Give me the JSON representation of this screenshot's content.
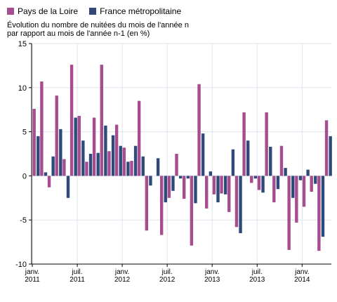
{
  "chart_data": {
    "type": "bar",
    "title": "",
    "ylabel_lines": [
      "Évolution du nombre de nuitées du mois de l'année n",
      "par rapport au mois de l'année n-1 (en %)"
    ],
    "xlabel": "",
    "ylim": [
      -10,
      15
    ],
    "yticks": [
      -10,
      -5,
      0,
      5,
      10,
      15
    ],
    "grid": true,
    "legend_position": "top-left",
    "x_ticks": [
      {
        "index": 0,
        "lines": [
          "janv.",
          "2011"
        ]
      },
      {
        "index": 6,
        "lines": [
          "juil.",
          "2011"
        ]
      },
      {
        "index": 12,
        "lines": [
          "janv.",
          "2012"
        ]
      },
      {
        "index": 18,
        "lines": [
          "juil.",
          "2012"
        ]
      },
      {
        "index": 24,
        "lines": [
          "janv.",
          "2013"
        ]
      },
      {
        "index": 30,
        "lines": [
          "juil.",
          "2013"
        ]
      },
      {
        "index": 36,
        "lines": [
          "janv.",
          "2014"
        ]
      }
    ],
    "categories": [
      "2011-01",
      "2011-02",
      "2011-03",
      "2011-04",
      "2011-05",
      "2011-06",
      "2011-07",
      "2011-08",
      "2011-09",
      "2011-10",
      "2011-11",
      "2011-12",
      "2012-01",
      "2012-02",
      "2012-03",
      "2012-04",
      "2012-05",
      "2012-06",
      "2012-07",
      "2012-08",
      "2012-09",
      "2012-10",
      "2012-11",
      "2012-12",
      "2013-01",
      "2013-02",
      "2013-03",
      "2013-04",
      "2013-05",
      "2013-06",
      "2013-07",
      "2013-08",
      "2013-09",
      "2013-10",
      "2013-11",
      "2013-12",
      "2014-01",
      "2014-02",
      "2014-03",
      "2014-04"
    ],
    "series": [
      {
        "name": "Pays de la Loire",
        "color": "#a64d8f",
        "values": [
          7.6,
          10.7,
          -1.3,
          9.1,
          1.9,
          12.6,
          6.8,
          1.6,
          6.6,
          12.6,
          2.8,
          5.8,
          3.2,
          1.7,
          8.5,
          -6.2,
          0,
          -6.7,
          -2.5,
          2.5,
          -2.6,
          -7.9,
          10.4,
          -3.7,
          -2.1,
          -2.0,
          -4.1,
          -5.8,
          7.2,
          -0.8,
          -1.6,
          7.2,
          -3.0,
          3.4,
          -8.4,
          -5.3,
          -3.5,
          -1.8,
          -8.5,
          6.3
        ]
      },
      {
        "name": "France métropolitaine",
        "color": "#2f4a7a",
        "values": [
          4.5,
          0.4,
          2.2,
          5.3,
          -2.5,
          6.6,
          4.0,
          2.5,
          2.6,
          5.7,
          4.6,
          3.4,
          1.6,
          3.4,
          2.2,
          -1.1,
          2.0,
          -3.0,
          -1.7,
          -0.3,
          -0.3,
          -3.1,
          4.8,
          0.5,
          -3.0,
          -2.1,
          3.0,
          -6.5,
          4.0,
          -0.3,
          -1.9,
          3.3,
          -1.5,
          0.9,
          -2.5,
          -0.5,
          0.7,
          -0.9,
          -6.9,
          4.5
        ]
      }
    ]
  }
}
